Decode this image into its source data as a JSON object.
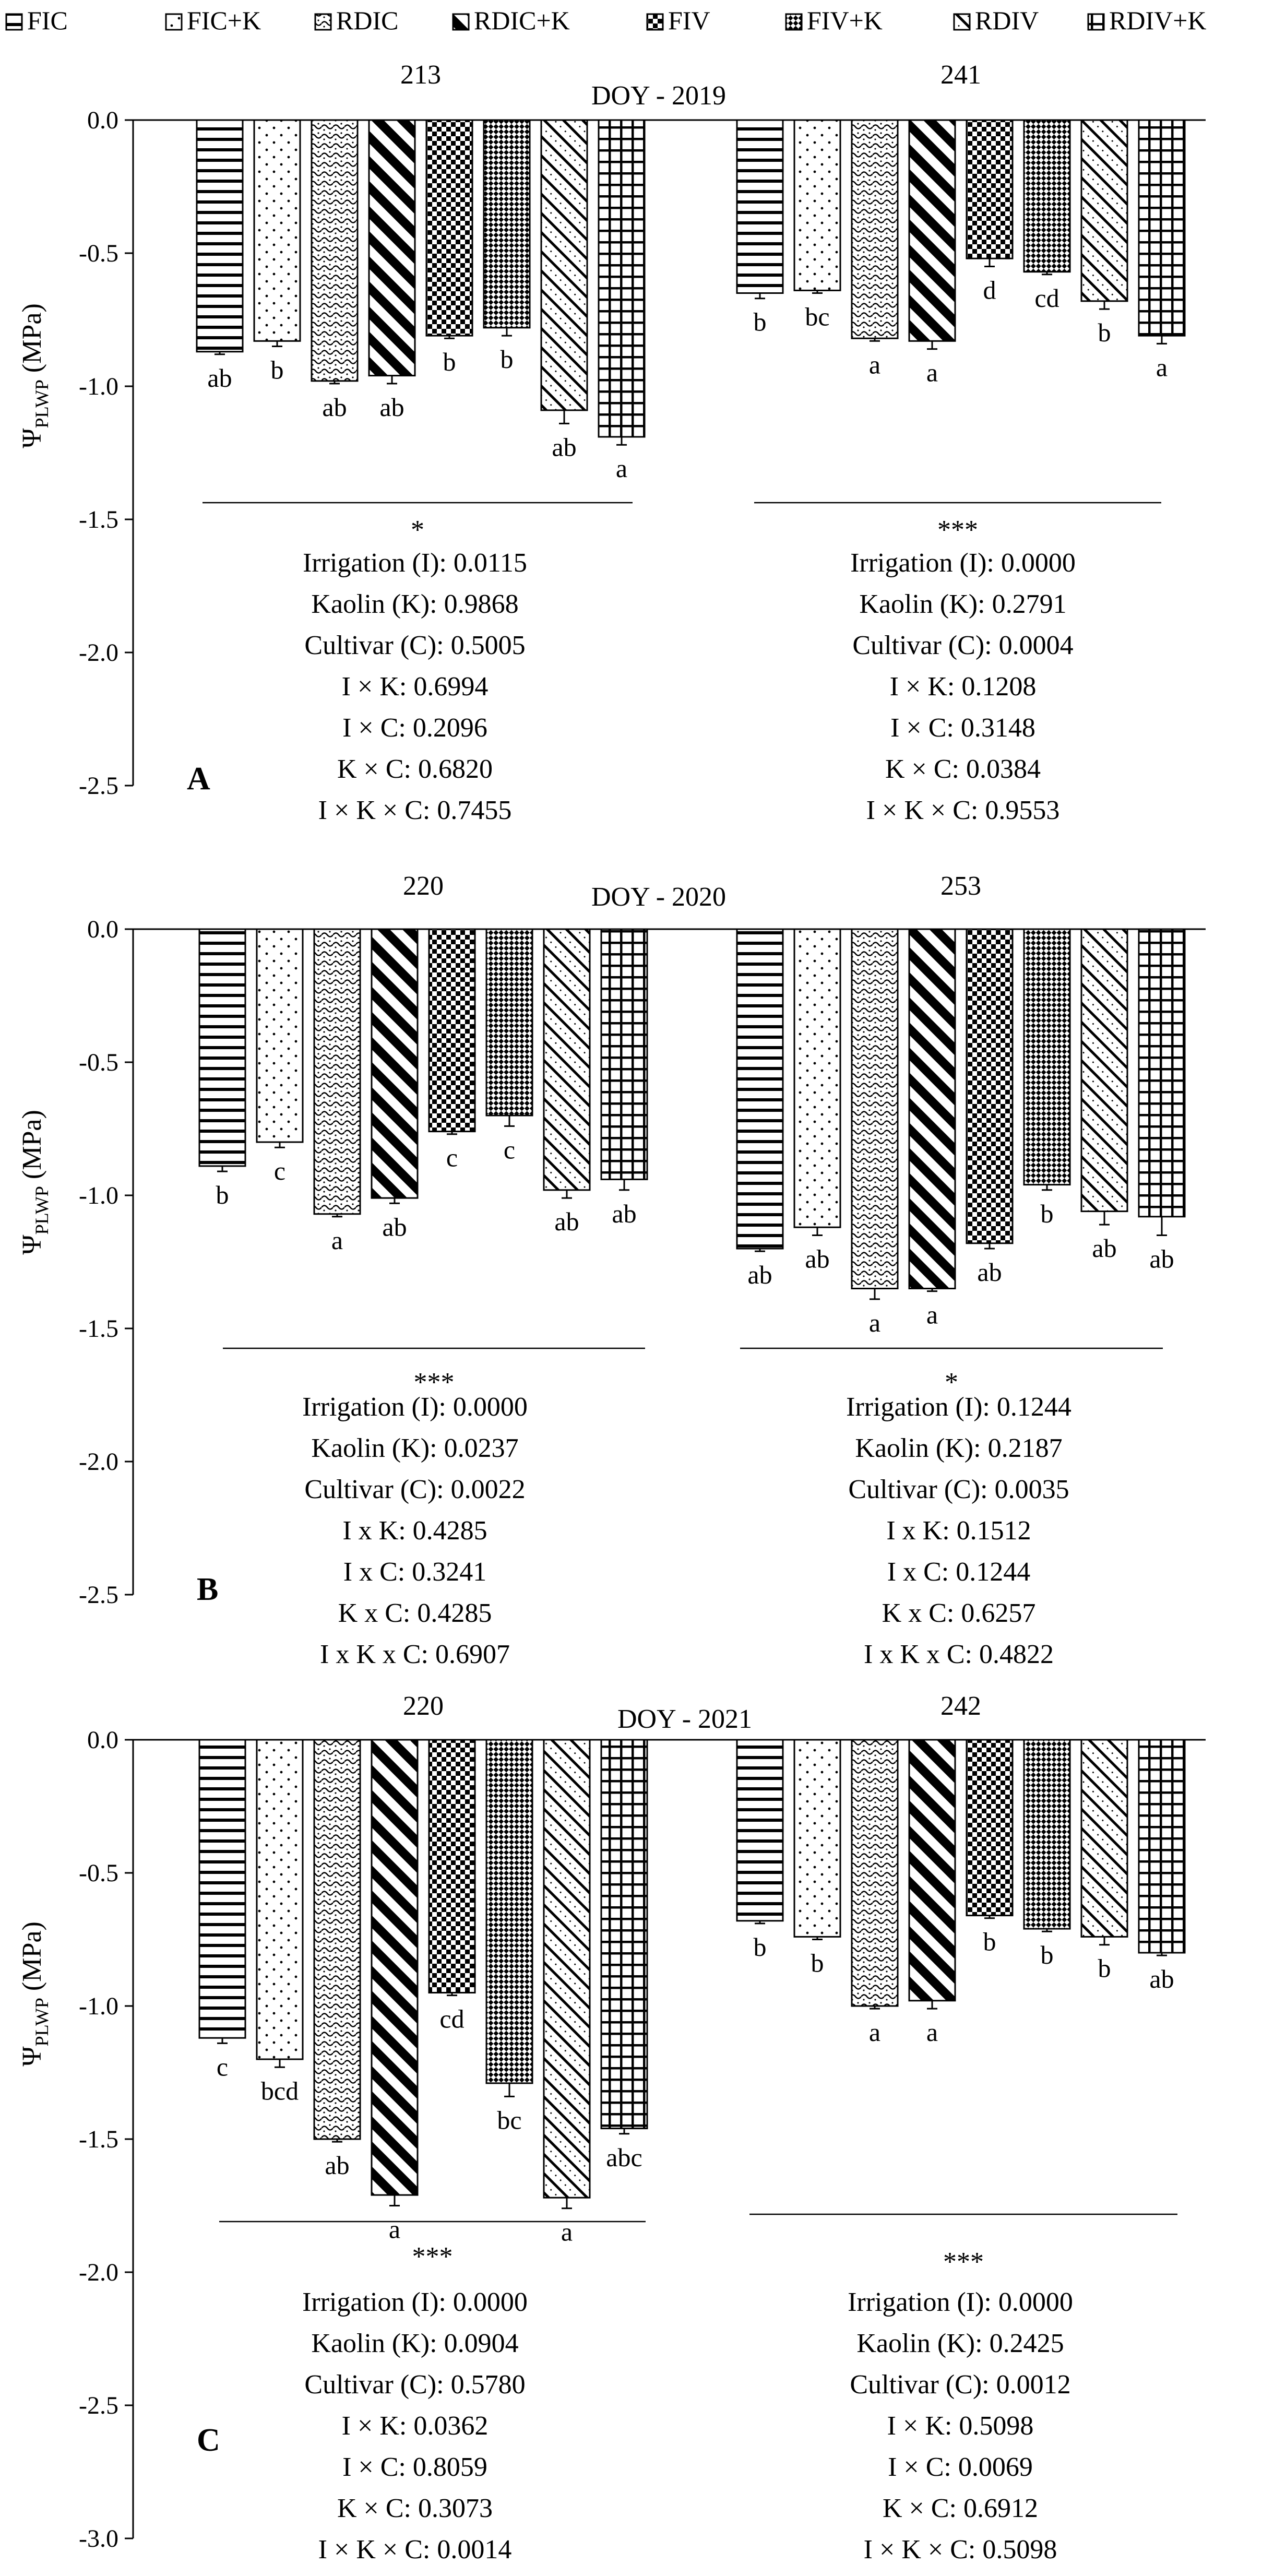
{
  "legend": {
    "items": [
      {
        "label": "FIC",
        "pattern": "horiz"
      },
      {
        "label": "FIC+K",
        "pattern": "dots"
      },
      {
        "label": "RDIC",
        "pattern": "wave"
      },
      {
        "label": "RDIC+K",
        "pattern": "diagthick"
      },
      {
        "label": "FIV",
        "pattern": "check"
      },
      {
        "label": "FIV+K",
        "pattern": "checkfine"
      },
      {
        "label": "RDIV",
        "pattern": "diagthin"
      },
      {
        "label": "RDIV+K",
        "pattern": "grid"
      }
    ]
  },
  "y_axis_label_main": "Ψ",
  "y_axis_label_sub": "PLWP",
  "y_axis_label_unit": " (MPa)",
  "chart_data": [
    {
      "type": "bar",
      "panel_label": "A",
      "title": "DOY - 2019",
      "ylim": [
        -2.5,
        0
      ],
      "yticks": [
        0,
        -0.5,
        -1,
        -1.5,
        -2,
        -2.5
      ],
      "ytick_labels": [
        "0.0",
        "-0.5",
        "-1.0",
        "-1.5",
        "-2.0",
        "-2.5"
      ],
      "series_names": [
        "FIC",
        "FIC+K",
        "RDIC",
        "RDIC+K",
        "FIV",
        "FIV+K",
        "RDIV",
        "RDIV+K"
      ],
      "groups": [
        {
          "doy": "213",
          "values": [
            -0.87,
            -0.83,
            -0.98,
            -0.96,
            -0.81,
            -0.78,
            -1.09,
            -1.19
          ],
          "errors": [
            0.01,
            0.02,
            0.01,
            0.03,
            0.01,
            0.03,
            0.05,
            0.03
          ],
          "letters": [
            "ab",
            "b",
            "ab",
            "ab",
            "b",
            "b",
            "ab",
            "a"
          ],
          "significance": "*",
          "stats": [
            "Irrigation (I): 0.0115",
            "Kaolin (K): 0.9868",
            "Cultivar (C): 0.5005",
            "I × K: 0.6994",
            "I  × C: 0.2096",
            "K × C: 0.6820",
            "I × K × C: 0.7455"
          ]
        },
        {
          "doy": "241",
          "values": [
            -0.65,
            -0.64,
            -0.82,
            -0.83,
            -0.52,
            -0.57,
            -0.68,
            -0.81
          ],
          "errors": [
            0.02,
            0.01,
            0.01,
            0.03,
            0.03,
            0.01,
            0.03,
            0.03
          ],
          "letters": [
            "b",
            "bc",
            "a",
            "a",
            "d",
            "cd",
            "b",
            "a"
          ],
          "significance": "***",
          "stats": [
            "Irrigation (I): 0.0000",
            "Kaolin (K): 0.2791",
            "Cultivar (C): 0.0004",
            "I × K: 0.1208",
            "I  × C: 0.3148",
            "K × C: 0.0384",
            "I × K × C: 0.9553"
          ]
        }
      ]
    },
    {
      "type": "bar",
      "panel_label": "B",
      "title": "DOY - 2020",
      "ylim": [
        -2.5,
        0
      ],
      "yticks": [
        0,
        -0.5,
        -1,
        -1.5,
        -2,
        -2.5
      ],
      "ytick_labels": [
        "0.0",
        "-0.5",
        "-1.0",
        "-1.5",
        "-2.0",
        "-2.5"
      ],
      "series_names": [
        "FIC",
        "FIC+K",
        "RDIC",
        "RDIC+K",
        "FIV",
        "FIV+K",
        "RDIV",
        "RDIV+K"
      ],
      "groups": [
        {
          "doy": "220",
          "values": [
            -0.89,
            -0.8,
            -1.07,
            -1.01,
            -0.76,
            -0.7,
            -0.98,
            -0.94
          ],
          "errors": [
            0.02,
            0.02,
            0.01,
            0.02,
            0.01,
            0.04,
            0.03,
            0.04
          ],
          "letters": [
            "b",
            "c",
            "a",
            "ab",
            "c",
            "c",
            "ab",
            "ab"
          ],
          "significance": "***",
          "stats": [
            "Irrigation (I): 0.0000",
            "Kaolin (K):  0.0237",
            "Cultivar (C): 0.0022",
            "I x K: 0.4285",
            "I  x C: 0.3241",
            "K x C: 0.4285",
            "I x K x C: 0.6907"
          ]
        },
        {
          "doy": "253",
          "values": [
            -1.2,
            -1.12,
            -1.35,
            -1.35,
            -1.18,
            -0.96,
            -1.06,
            -1.08
          ],
          "errors": [
            0.01,
            0.03,
            0.04,
            0.01,
            0.02,
            0.02,
            0.05,
            0.07
          ],
          "letters": [
            "ab",
            "ab",
            "a",
            "a",
            "ab",
            "b",
            "ab",
            "ab"
          ],
          "significance": "*",
          "stats": [
            "Irrigation (I): 0.1244",
            "Kaolin (K): 0.2187",
            "Cultivar (C): 0.0035",
            "I x K: 0.1512",
            "I  x C: 0.1244",
            "K x C: 0.6257",
            "I x K x C: 0.4822"
          ]
        }
      ]
    },
    {
      "type": "bar",
      "panel_label": "C",
      "title": "DOY - 2021",
      "ylim": [
        -3.0,
        0
      ],
      "yticks": [
        0,
        -0.5,
        -1,
        -1.5,
        -2,
        -2.5,
        -3
      ],
      "ytick_labels": [
        "0.0",
        "-0.5",
        "-1.0",
        "-1.5",
        "-2.0",
        "-2.5",
        "-3.0"
      ],
      "series_names": [
        "FIC",
        "FIC+K",
        "RDIC",
        "RDIC+K",
        "FIV",
        "FIV+K",
        "RDIV",
        "RDIV+K"
      ],
      "groups": [
        {
          "doy": "220",
          "values": [
            -1.12,
            -1.2,
            -1.5,
            -1.71,
            -0.95,
            -1.29,
            -1.72,
            -1.46
          ],
          "errors": [
            0.02,
            0.03,
            0.01,
            0.04,
            0.01,
            0.05,
            0.04,
            0.02
          ],
          "letters": [
            "c",
            "bcd",
            "ab",
            "a",
            "cd",
            "bc",
            "a",
            "abc"
          ],
          "significance": "***",
          "stats": [
            "Irrigation (I): 0.0000",
            "Kaolin (K): 0.0904",
            "Cultivar (C): 0.5780",
            "I × K: 0.0362",
            "I  × C: 0.8059",
            "K × C: 0.3073",
            "I × K × C: 0.0014"
          ]
        },
        {
          "doy": "242",
          "values": [
            -0.68,
            -0.74,
            -1.0,
            -0.98,
            -0.66,
            -0.71,
            -0.74,
            -0.8
          ],
          "errors": [
            0.01,
            0.01,
            0.01,
            0.03,
            0.01,
            0.01,
            0.03,
            0.01
          ],
          "letters": [
            "b",
            "b",
            "a",
            "a",
            "b",
            "b",
            "b",
            "ab"
          ],
          "significance": "***",
          "stats": [
            "Irrigation (I): 0.0000",
            "Kaolin (K): 0.2425",
            "Cultivar (C): 0.0012",
            "I × K: 0.5098",
            "I  × C: 0.0069",
            "K × C: 0.6912",
            "I × K × C: 0.5098"
          ]
        }
      ]
    }
  ]
}
